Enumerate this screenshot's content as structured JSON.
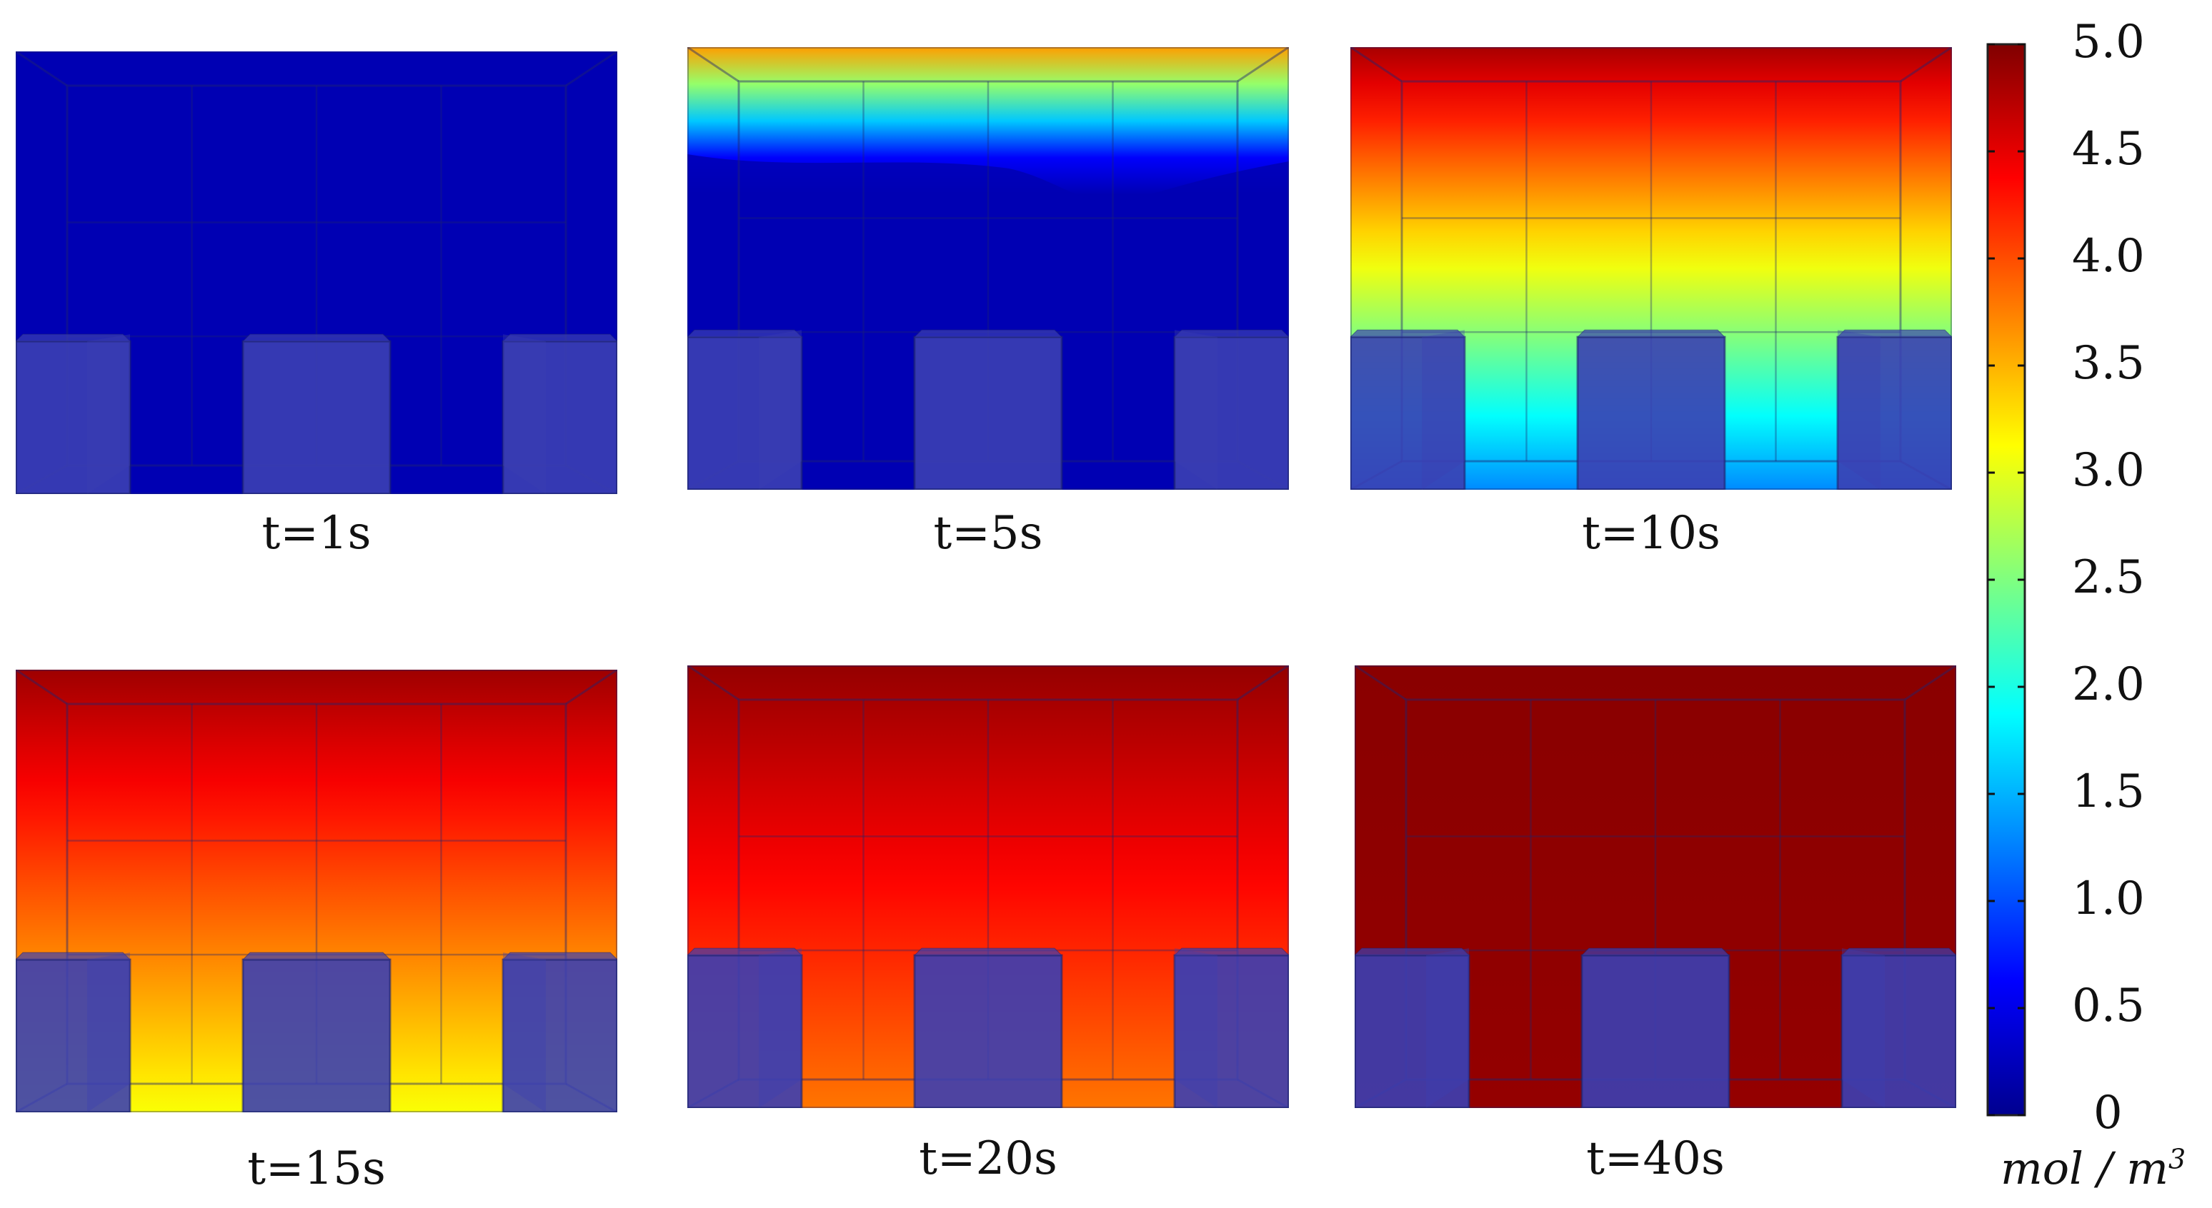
{
  "panels": [
    {
      "label": "t=1s",
      "level_top": 0.25,
      "level_bottom": 0.25,
      "wave": 0.0,
      "band": 0.0
    },
    {
      "label": "t=5s",
      "level_top": 3.6,
      "level_bottom": 0.25,
      "wave": 1.0,
      "band": 0.25
    },
    {
      "label": "t=10s",
      "level_top": 4.8,
      "level_bottom": 1.3,
      "wave": 0.0,
      "band": 1.0
    },
    {
      "label": "t=15s",
      "level_top": 4.85,
      "level_bottom": 3.1,
      "wave": 0.0,
      "band": 1.0
    },
    {
      "label": "t=20s",
      "level_top": 4.9,
      "level_bottom": 3.8,
      "wave": 0.0,
      "band": 1.0
    },
    {
      "label": "t=40s",
      "level_top": 4.95,
      "level_bottom": 4.9,
      "wave": 0.0,
      "band": 1.0
    }
  ],
  "colorbar": {
    "min": 0,
    "max": 5.0,
    "colormap": "jet",
    "ticks": [
      {
        "value": 5.0,
        "label": "5.0"
      },
      {
        "value": 4.5,
        "label": "4.5"
      },
      {
        "value": 4.0,
        "label": "4.0"
      },
      {
        "value": 3.5,
        "label": "3.5"
      },
      {
        "value": 3.0,
        "label": "3.0"
      },
      {
        "value": 2.5,
        "label": "2.5"
      },
      {
        "value": 2.0,
        "label": "2.0"
      },
      {
        "value": 1.5,
        "label": "1.5"
      },
      {
        "value": 1.0,
        "label": "1.0"
      },
      {
        "value": 0.5,
        "label": "0.5"
      },
      {
        "value": 0,
        "label": "0"
      }
    ],
    "unit_main": "mol / m",
    "unit_sup": "3"
  },
  "colors": {
    "obstacle_blue": "#3b3fb3",
    "edge": "#1e2470"
  }
}
